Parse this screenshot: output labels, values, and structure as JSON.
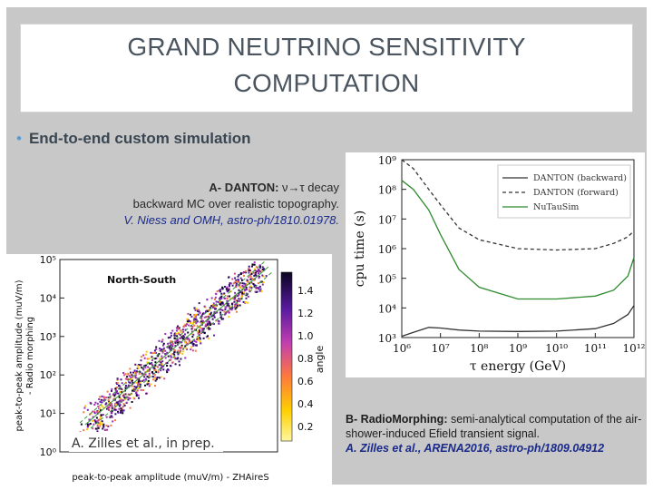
{
  "slide": {
    "title_line1": "GRAND NEUTRINO SENSITIVITY",
    "title_line2": "COMPUTATION",
    "bullet": "End-to-end custom simulation",
    "caption_a": {
      "title": "A- DANTON:",
      "title_rest": " ν→τ decay",
      "line2": "backward MC over realistic topography.",
      "reference": "V. Niess and OMH, astro-ph/1810.01978."
    },
    "caption_b": {
      "title": "B- RadioMorphing:",
      "text": " semi-analytical computation of the air-shower-induced Efield transient signal.",
      "reference": "A. Zilles et al., ARENA2016, astro-ph/1809.04912"
    }
  },
  "danton_plot": {
    "ylabel": "cpu time (s)",
    "xlabel": "τ energy (GeV)",
    "y_ticks": [
      "10³",
      "10⁴",
      "10⁵",
      "10⁶",
      "10⁷",
      "10⁸",
      "10⁹"
    ],
    "x_ticks": [
      "10⁶",
      "10⁷",
      "10⁸",
      "10⁹",
      "10¹⁰",
      "10¹¹",
      "10¹²"
    ],
    "legend": [
      "DANTON (backward)",
      "DANTON (forward)",
      "NuTauSim"
    ],
    "colors": {
      "backward": "#333333",
      "forward": "#333333",
      "nutausim": "#2e8b2e"
    }
  },
  "rm_plot": {
    "panel_label": "North-South",
    "ylabel_line1": "peak-to-peak amplitude (muV/m)",
    "ylabel_line2": "- Radio morphing",
    "xlabel": "peak-to-peak amplitude (muV/m) - ZHAireS",
    "y_ticks": [
      "10⁰",
      "10¹",
      "10²",
      "10³",
      "10⁴",
      "10⁵"
    ],
    "colorbar_ticks": [
      "0.2",
      "0.4",
      "0.6",
      "0.8",
      "1.0",
      "1.2",
      "1.4"
    ],
    "colorbar_label": "angle",
    "overlay_text": "A. Zilles et al., in prep."
  },
  "chart_data": [
    {
      "type": "line",
      "x_scale": "log",
      "y_scale": "log",
      "xlabel": "τ energy (GeV)",
      "ylabel": "cpu time (s)",
      "xlim": [
        1000000,
        1000000000000
      ],
      "ylim": [
        1000,
        1000000000
      ],
      "legend_position": "top-right",
      "series": [
        {
          "name": "DANTON (backward)",
          "style": "solid",
          "color": "#333333",
          "x": [
            1000000,
            2000000,
            5000000,
            10000000,
            30000000,
            100000000,
            1000000000,
            10000000000,
            100000000000,
            300000000000,
            700000000000,
            1000000000000
          ],
          "y": [
            1100,
            1500,
            2200,
            2100,
            1800,
            1650,
            1600,
            1650,
            2000,
            3000,
            6000,
            12000
          ]
        },
        {
          "name": "DANTON (forward)",
          "style": "dashed",
          "color": "#333333",
          "x": [
            1000000,
            2000000,
            5000000,
            10000000,
            30000000,
            100000000,
            1000000000,
            10000000000,
            100000000000,
            300000000000,
            700000000000,
            1000000000000
          ],
          "y": [
            1000000000,
            500000000,
            100000000,
            30000000,
            5000000,
            2000000,
            1000000,
            900000,
            1000000,
            1500000,
            2500000,
            4000000
          ]
        },
        {
          "name": "NuTauSim",
          "style": "solid",
          "color": "#2e8b2e",
          "x": [
            1000000,
            2000000,
            5000000,
            10000000,
            30000000,
            100000000,
            1000000000,
            10000000000,
            100000000000,
            300000000000,
            700000000000,
            1000000000000
          ],
          "y": [
            200000000,
            100000000,
            20000000,
            3000000,
            200000,
            50000,
            20000,
            20000,
            25000,
            40000,
            120000,
            500000
          ]
        }
      ]
    },
    {
      "type": "scatter",
      "x_scale": "log",
      "y_scale": "log",
      "xlabel": "peak-to-peak amplitude (muV/m) - ZHAireS",
      "ylabel": "peak-to-peak amplitude (muV/m) - Radio morphing",
      "xlim": [
        1,
        100000
      ],
      "ylim": [
        1,
        100000
      ],
      "colorbar": {
        "label": "angle",
        "range": [
          0.1,
          1.5
        ]
      },
      "series": [
        {
          "name": "North-South",
          "trend_x": [
            10,
            100,
            1000,
            10000,
            50000
          ],
          "trend_y": [
            10,
            100,
            1000,
            10000,
            50000
          ]
        }
      ]
    }
  ]
}
